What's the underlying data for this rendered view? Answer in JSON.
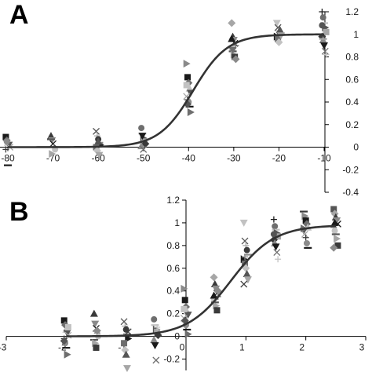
{
  "colors": {
    "curve": "#333333",
    "axis": "#000000",
    "markers": [
      "#1a1a1a",
      "#3a3a3a",
      "#555555",
      "#6e6e6e",
      "#8a8a8a",
      "#a6a6a6",
      "#c2c2c2"
    ]
  },
  "chart_data": [
    {
      "type": "scatter",
      "panel_label": "A",
      "x_ticks": [
        -80,
        -70,
        -60,
        -50,
        -40,
        -30,
        -20,
        -10
      ],
      "y_ticks": [
        -0.4,
        -0.2,
        0,
        0.2,
        0.4,
        0.6,
        0.8,
        1,
        1.2
      ],
      "xlim": [
        -80,
        -10
      ],
      "ylim": [
        -0.4,
        1.2
      ],
      "y_axis_side": "right",
      "x_axis_at": 0,
      "fit_curve": {
        "model": "boltzmann",
        "v_half": -39,
        "slope": 3.8
      },
      "points": [
        {
          "x": -80,
          "y": [
            0.09,
            0.06,
            0.04,
            0.02,
            0.0,
            -0.02,
            0.05,
            -0.16
          ]
        },
        {
          "x": -70,
          "y": [
            0.1,
            0.06,
            0.03,
            0.0,
            -0.02,
            0.07,
            -0.06
          ]
        },
        {
          "x": -60,
          "y": [
            0.14,
            0.1,
            0.07,
            0.04,
            0.02,
            0.0,
            -0.03,
            0.05,
            -0.07
          ]
        },
        {
          "x": -50,
          "y": [
            0.17,
            0.12,
            0.08,
            0.05,
            0.03,
            0.01,
            0.1,
            -0.02
          ]
        },
        {
          "x": -40,
          "y": [
            0.74,
            0.62,
            0.57,
            0.52,
            0.48,
            0.45,
            0.42,
            0.4,
            0.36,
            0.31,
            0.55,
            0.38
          ]
        },
        {
          "x": -30,
          "y": [
            1.1,
            0.98,
            0.95,
            0.92,
            0.9,
            0.88,
            0.85,
            0.82,
            0.8,
            0.78,
            0.96,
            0.86
          ]
        },
        {
          "x": -20,
          "y": [
            1.1,
            1.06,
            1.03,
            1.01,
            1.0,
            0.98,
            0.96,
            0.93,
            1.04,
            0.99
          ]
        },
        {
          "x": -10,
          "y": [
            1.2,
            1.15,
            1.1,
            1.06,
            1.02,
            0.98,
            0.95,
            0.9,
            0.85,
            0.82,
            1.08,
            0.96
          ]
        }
      ]
    },
    {
      "type": "scatter",
      "panel_label": "B",
      "x_ticks": [
        -3,
        -2,
        -1,
        0,
        1,
        2,
        3
      ],
      "y_ticks": [
        -0.2,
        0,
        0.2,
        0.4,
        0.6,
        0.8,
        1,
        1.2
      ],
      "xlim": [
        -3,
        3
      ],
      "ylim": [
        -0.3,
        1.2
      ],
      "y_axis_at": 0,
      "x_axis_at": 0,
      "fit_curve": {
        "model": "logistic",
        "top": 0.98,
        "x_half": 0.75,
        "slope": 0.36
      },
      "points": [
        {
          "x": -2,
          "y": [
            0.14,
            0.1,
            0.06,
            0.03,
            0.01,
            -0.02,
            -0.06,
            -0.1,
            -0.16,
            0.08,
            -0.04
          ]
        },
        {
          "x": -1.5,
          "y": [
            0.2,
            0.11,
            0.07,
            0.03,
            0.0,
            -0.03,
            -0.06,
            -0.1,
            0.05
          ]
        },
        {
          "x": -1,
          "y": [
            0.13,
            0.09,
            0.06,
            0.02,
            -0.02,
            -0.06,
            -0.12,
            -0.16,
            -0.28,
            0.04
          ]
        },
        {
          "x": -0.5,
          "y": [
            0.15,
            0.1,
            0.06,
            0.04,
            0.01,
            -0.03,
            -0.08,
            -0.21,
            0.08
          ]
        },
        {
          "x": 0,
          "y": [
            0.42,
            0.32,
            0.26,
            0.22,
            0.19,
            0.16,
            0.13,
            0.1,
            0.06,
            0.02,
            0.24,
            0.14
          ]
        },
        {
          "x": 0.5,
          "y": [
            0.52,
            0.46,
            0.42,
            0.38,
            0.35,
            0.33,
            0.3,
            0.27,
            0.23,
            0.4,
            0.36
          ]
        },
        {
          "x": 1,
          "y": [
            1.0,
            0.84,
            0.8,
            0.76,
            0.72,
            0.68,
            0.64,
            0.6,
            0.55,
            0.5,
            0.46,
            0.7
          ]
        },
        {
          "x": 1.5,
          "y": [
            1.03,
            0.97,
            0.94,
            0.91,
            0.88,
            0.85,
            0.82,
            0.79,
            0.74,
            0.68,
            0.9
          ]
        },
        {
          "x": 2,
          "y": [
            1.1,
            1.06,
            1.02,
            0.99,
            0.96,
            0.93,
            0.9,
            0.87,
            0.82,
            0.78,
            0.95
          ]
        },
        {
          "x": 2.5,
          "y": [
            1.12,
            1.08,
            1.05,
            1.02,
            0.99,
            0.96,
            0.93,
            0.9,
            0.86,
            0.8,
            0.78,
            1.0
          ]
        }
      ]
    }
  ]
}
